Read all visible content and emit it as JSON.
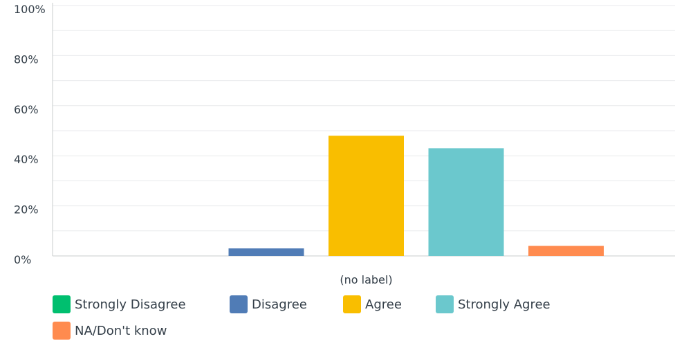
{
  "chart_data": {
    "type": "bar",
    "categories": [
      "(no label)"
    ],
    "series": [
      {
        "name": "Strongly Disagree",
        "values": [
          0
        ],
        "color": "#00bf6f"
      },
      {
        "name": "Disagree",
        "values": [
          3
        ],
        "color": "#507cb6"
      },
      {
        "name": "Agree",
        "values": [
          48
        ],
        "color": "#f9be00"
      },
      {
        "name": "Strongly Agree",
        "values": [
          43
        ],
        "color": "#6bc8cd"
      },
      {
        "name": "NA/Don't know",
        "values": [
          4
        ],
        "color": "#ff8b4f"
      }
    ],
    "yticks": [
      "0%",
      "20%",
      "40%",
      "60%",
      "80%",
      "100%"
    ],
    "ylim": [
      0,
      100
    ],
    "grid": true,
    "legend_position": "bottom",
    "title": "",
    "xlabel": "",
    "ylabel": ""
  }
}
